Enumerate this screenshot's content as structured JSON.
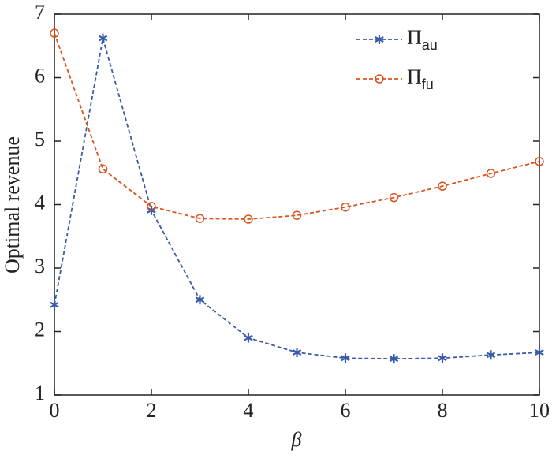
{
  "chart_data": {
    "type": "line",
    "xlabel": "β",
    "ylabel": "Optimal revenue",
    "x": [
      0,
      1,
      2,
      3,
      4,
      5,
      6,
      7,
      8,
      9,
      10
    ],
    "series": [
      {
        "name": "Πau",
        "color": "#3a5ba8",
        "marker": "star",
        "values": [
          2.42,
          6.62,
          3.91,
          2.5,
          1.9,
          1.67,
          1.58,
          1.57,
          1.58,
          1.63,
          1.67
        ]
      },
      {
        "name": "Πfu",
        "color": "#d9541e",
        "marker": "circle",
        "values": [
          6.7,
          4.56,
          3.97,
          3.78,
          3.77,
          3.83,
          3.96,
          4.11,
          4.29,
          4.49,
          4.68
        ]
      }
    ],
    "xlim": [
      0,
      10
    ],
    "xticks": [
      0,
      2,
      4,
      6,
      8,
      10
    ],
    "ylim": [
      1,
      7
    ],
    "yticks": [
      1,
      2,
      3,
      4,
      5,
      6,
      7
    ],
    "grid": false,
    "legend": "upper right"
  }
}
